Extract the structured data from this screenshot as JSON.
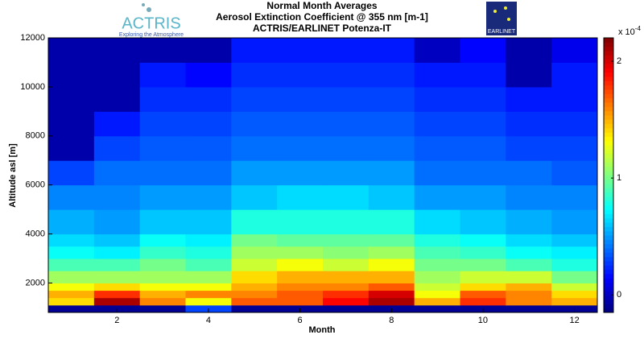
{
  "chart_data": {
    "type": "heatmap",
    "title": [
      "Normal Month Averages",
      "Aerosol Extinction Coefficient @ 355 nm [m-1]",
      "ACTRIS/EARLINET Potenza-IT"
    ],
    "xlabel": "Month",
    "ylabel": "Altitude asl [m]",
    "logos": {
      "left": "ACTRIS",
      "left_tagline": "Exploring the Atmosphere",
      "right": "EARLINET"
    },
    "x": [
      1,
      2,
      3,
      4,
      5,
      6,
      7,
      8,
      9,
      10,
      11,
      12
    ],
    "xlim": [
      0.5,
      12.5
    ],
    "xticks": [
      2,
      4,
      6,
      8,
      10,
      12
    ],
    "y_edges": [
      800,
      1100,
      1400,
      1700,
      2000,
      2500,
      3000,
      3500,
      4000,
      5000,
      6000,
      7000,
      8000,
      9000,
      10000,
      11000,
      12000
    ],
    "ylim": [
      800,
      12000
    ],
    "yticks": [
      2000,
      4000,
      6000,
      8000,
      10000,
      12000
    ],
    "values": [
      [
        -0.1,
        -0.1,
        -0.1,
        0.3,
        -0.1,
        -0.1,
        -0.1,
        -0.1,
        -0.1,
        -0.1,
        -0.1,
        -0.1
      ],
      [
        1.4,
        2.1,
        1.6,
        1.3,
        1.7,
        1.7,
        1.9,
        2.1,
        1.5,
        1.8,
        1.6,
        1.5
      ],
      [
        1.5,
        1.8,
        1.5,
        1.6,
        1.6,
        1.7,
        1.8,
        2.0,
        1.3,
        1.7,
        1.6,
        1.4
      ],
      [
        1.3,
        1.4,
        1.3,
        1.3,
        1.5,
        1.6,
        1.6,
        1.7,
        1.2,
        1.4,
        1.5,
        1.2
      ],
      [
        1.1,
        1.1,
        1.1,
        1.1,
        1.4,
        1.5,
        1.5,
        1.5,
        1.1,
        1.2,
        1.2,
        1.0
      ],
      [
        0.9,
        0.9,
        1.0,
        0.9,
        1.2,
        1.3,
        1.2,
        1.3,
        1.0,
        1.0,
        0.9,
        0.8
      ],
      [
        0.75,
        0.7,
        0.85,
        0.8,
        1.1,
        1.1,
        1.05,
        1.1,
        0.9,
        0.85,
        0.75,
        0.7
      ],
      [
        0.65,
        0.6,
        0.75,
        0.7,
        1.0,
        0.95,
        0.95,
        0.95,
        0.8,
        0.75,
        0.65,
        0.6
      ],
      [
        0.55,
        0.5,
        0.6,
        0.6,
        0.8,
        0.8,
        0.8,
        0.8,
        0.65,
        0.6,
        0.55,
        0.5
      ],
      [
        0.45,
        0.45,
        0.5,
        0.5,
        0.6,
        0.65,
        0.65,
        0.6,
        0.5,
        0.5,
        0.45,
        0.45
      ],
      [
        0.3,
        0.4,
        0.4,
        0.4,
        0.5,
        0.5,
        0.5,
        0.5,
        0.4,
        0.4,
        0.4,
        0.35
      ],
      [
        -0.05,
        0.3,
        0.35,
        0.35,
        0.4,
        0.4,
        0.4,
        0.4,
        0.35,
        0.35,
        0.3,
        0.3
      ],
      [
        -0.05,
        0.2,
        0.3,
        0.3,
        0.35,
        0.35,
        0.35,
        0.35,
        0.3,
        0.3,
        0.25,
        0.25
      ],
      [
        -0.05,
        -0.05,
        0.25,
        0.25,
        0.3,
        0.3,
        0.3,
        0.3,
        0.25,
        0.25,
        0.2,
        0.2
      ],
      [
        -0.05,
        -0.05,
        0.2,
        0.15,
        0.25,
        0.25,
        0.25,
        0.25,
        0.2,
        0.2,
        -0.05,
        0.2
      ],
      [
        -0.05,
        -0.05,
        -0.05,
        -0.05,
        0.2,
        0.2,
        0.2,
        0.2,
        0.0,
        0.15,
        -0.05,
        0.1
      ]
    ],
    "colormap": "jet",
    "clim": [
      -0.15,
      2.2
    ],
    "cticks": [
      0,
      1,
      2
    ],
    "colorbar_exponent": {
      "base": "x 10",
      "power": "-4"
    }
  }
}
